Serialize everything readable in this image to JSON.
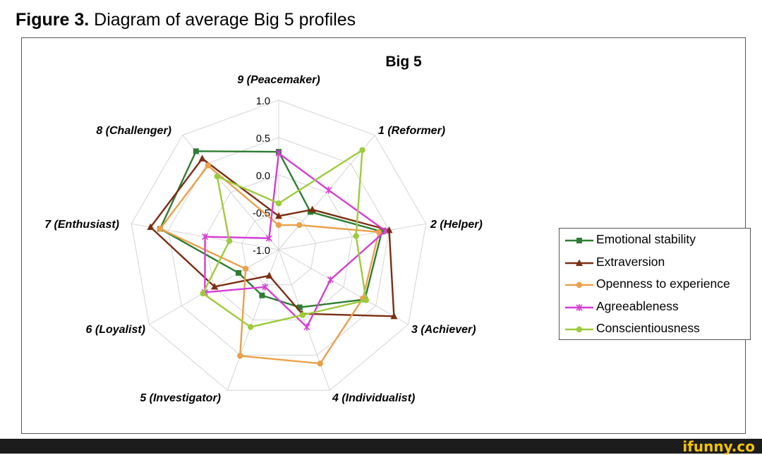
{
  "figure": {
    "label": "Figure 3.",
    "title": "Diagram of average Big 5 profiles"
  },
  "watermark": "ifunny.co",
  "chart_data": {
    "type": "radar",
    "title": "Big 5",
    "axes": [
      "9 (Peacemaker)",
      "1 (Reformer)",
      "2 (Helper)",
      "3 (Achiever)",
      "4 (Individualist)",
      "5 (Investigator)",
      "6 (Loyalist)",
      "7 (Enthusiast)",
      "8 (Challenger)"
    ],
    "rlim": [
      -1.0,
      1.0
    ],
    "ticks": [
      1.0,
      0.5,
      0.0,
      -0.5,
      -1.0
    ],
    "tick_labels": [
      "1.0",
      "0.5",
      "0.0",
      "-0.5",
      "-1.0"
    ],
    "legend_position": "right",
    "series": [
      {
        "name": "Emotional stability",
        "color": "#2e7d32",
        "marker": "square",
        "values": [
          0.31,
          -0.34,
          0.4,
          0.33,
          -0.18,
          -0.35,
          -0.38,
          0.61,
          0.72
        ]
      },
      {
        "name": "Extraversion",
        "color": "#7b2e14",
        "marker": "triangle",
        "values": [
          -0.55,
          -0.3,
          0.5,
          0.78,
          -0.09,
          -0.63,
          -0.01,
          0.74,
          0.59
        ]
      },
      {
        "name": "Openness to experience",
        "color": "#eba04a",
        "marker": "circle",
        "values": [
          -0.67,
          -0.57,
          0.36,
          0.3,
          0.62,
          0.51,
          -0.49,
          0.61,
          0.47
        ]
      },
      {
        "name": "Agreeableness",
        "color": "#d63ed6",
        "marker": "star",
        "values": [
          0.29,
          0.04,
          0.45,
          -0.2,
          0.1,
          -0.47,
          0.14,
          0.0,
          -0.8
        ]
      },
      {
        "name": "Conscientiousness",
        "color": "#9dcb3b",
        "marker": "circle",
        "values": [
          -0.38,
          0.74,
          0.05,
          0.35,
          -0.07,
          0.1,
          0.17,
          -0.33,
          0.28
        ]
      }
    ]
  }
}
